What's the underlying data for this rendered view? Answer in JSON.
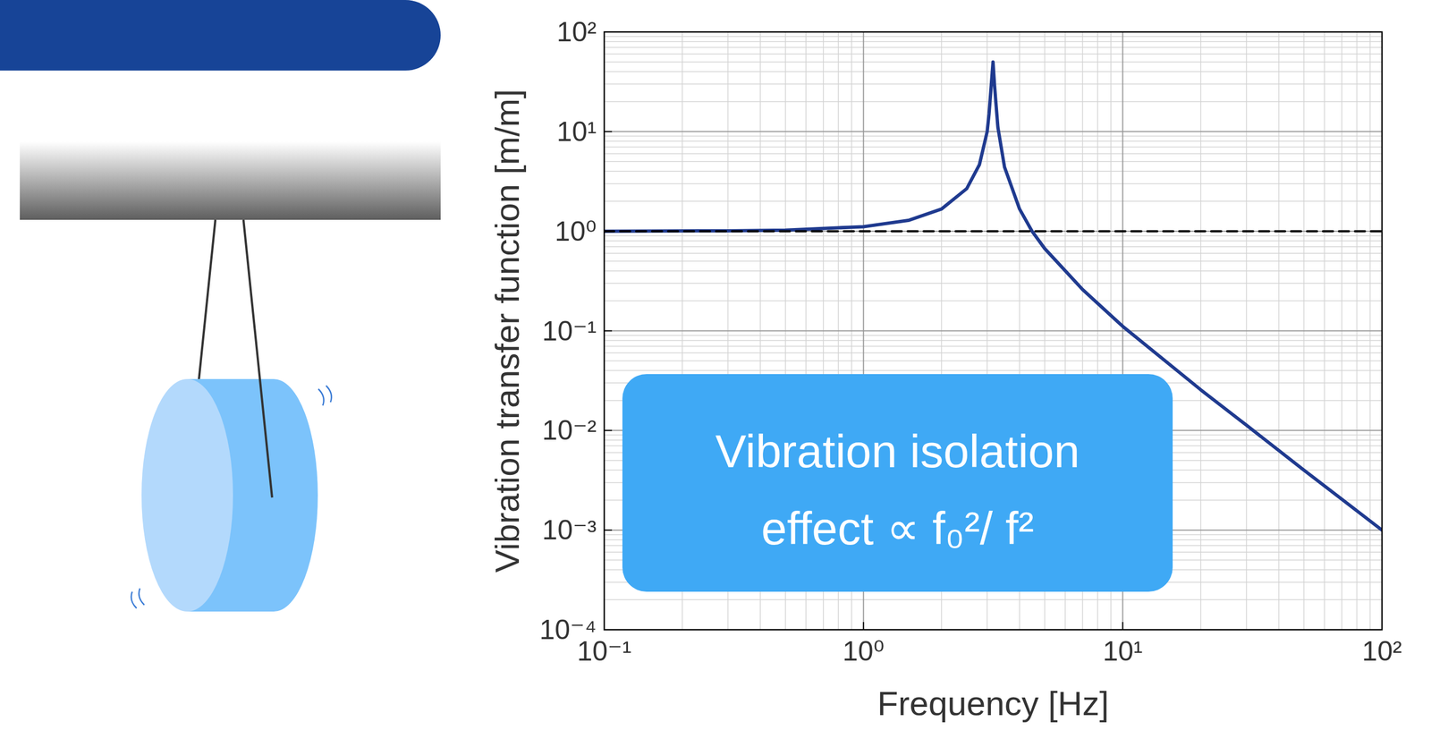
{
  "chart_data": {
    "type": "line",
    "x_label": "Frequency [Hz]",
    "y_label": "Vibration transfer function [m/m]",
    "log": true,
    "grid": true,
    "xlim": [
      0.1,
      100
    ],
    "ylim": [
      0.0001,
      100
    ],
    "xticks": [
      {
        "value": 0.1,
        "label": "10⁻¹"
      },
      {
        "value": 1,
        "label": "10⁰"
      },
      {
        "value": 10,
        "label": "10¹"
      },
      {
        "value": 100,
        "label": "10²"
      }
    ],
    "yticks": [
      {
        "value": 0.0001,
        "label": "10⁻⁴"
      },
      {
        "value": 0.001,
        "label": "10⁻³"
      },
      {
        "value": 0.01,
        "label": "10⁻²"
      },
      {
        "value": 0.1,
        "label": "10⁻¹"
      },
      {
        "value": 1,
        "label": "10⁰"
      },
      {
        "value": 10,
        "label": "10¹"
      },
      {
        "value": 100,
        "label": "10²"
      }
    ],
    "annotation": [
      "Vibration isolation",
      "effect ∝ f₀²/ f²"
    ],
    "series": [
      {
        "color": "#1f3a8f",
        "line_style": "solid",
        "x": [
          0.1,
          0.3,
          0.5,
          1,
          1.5,
          2,
          2.5,
          2.8,
          3.0,
          3.05,
          3.1,
          3.16,
          3.2,
          3.25,
          3.3,
          3.5,
          4,
          4.47,
          5,
          7,
          10,
          20,
          30,
          50,
          70,
          100
        ],
        "values": [
          1.0,
          1.009,
          1.026,
          1.11,
          1.29,
          1.67,
          2.67,
          4.65,
          10,
          15,
          26,
          50,
          30,
          18,
          11,
          4.4,
          1.67,
          1.0,
          0.67,
          0.26,
          0.111,
          0.0256,
          0.0113,
          0.004,
          0.00204,
          0.001
        ]
      },
      {
        "color": "#000000",
        "line_style": "dashed",
        "x": [
          0.1,
          100
        ],
        "values": [
          1,
          1
        ]
      }
    ]
  }
}
